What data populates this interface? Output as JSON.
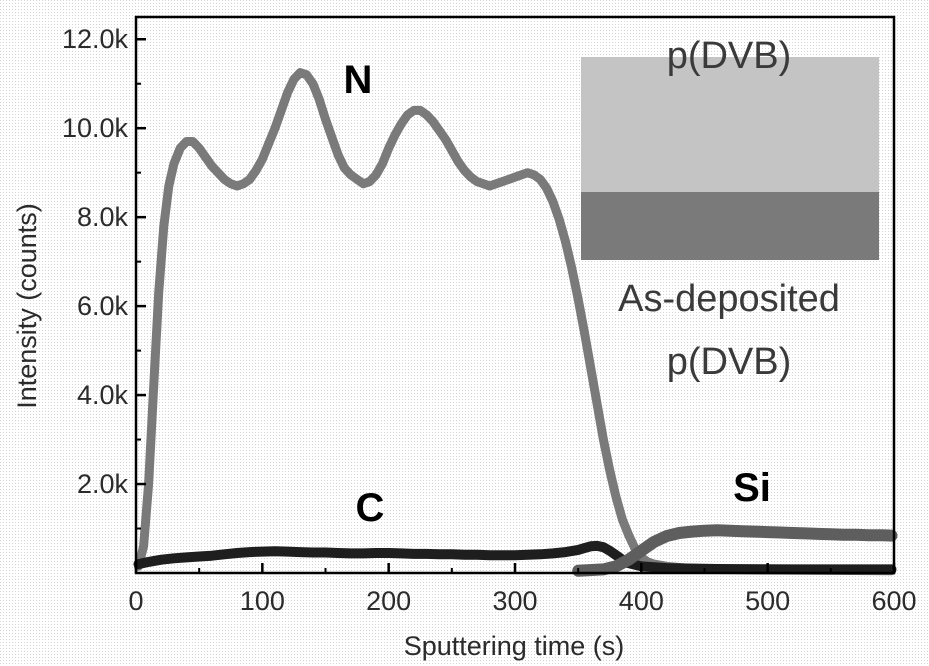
{
  "chart_data": {
    "type": "line",
    "xlabel": "Sputtering time (s)",
    "ylabel": "Intensity (counts)",
    "xlim": [
      0,
      600
    ],
    "ylim": [
      0,
      12500
    ],
    "x_ticks": [
      "0",
      "100",
      "200",
      "300",
      "400",
      "500",
      "600"
    ],
    "y_ticks": [
      "2.0k",
      "4.0k",
      "6.0k",
      "8.0k",
      "10.0k",
      "12.0k"
    ],
    "y_tick_values": [
      2000,
      4000,
      6000,
      8000,
      10000,
      12000
    ],
    "grid": false,
    "legend": "none",
    "annotations": {
      "n_label": "N",
      "c_label": "C",
      "si_label": "Si"
    },
    "inset": {
      "top_layer_label": "p(DVB)",
      "bottom_layer_label_1": "As-deposited",
      "bottom_layer_label_2": "p(DVB)",
      "top_layer_color": "#c4c4c4",
      "bottom_layer_color": "#7a7a7a"
    },
    "series": [
      {
        "name": "N",
        "color": "#7a7a7a",
        "points": [
          [
            2,
            150
          ],
          [
            6,
            600
          ],
          [
            10,
            2000
          ],
          [
            14,
            4200
          ],
          [
            18,
            6300
          ],
          [
            22,
            7800
          ],
          [
            26,
            8700
          ],
          [
            30,
            9200
          ],
          [
            35,
            9550
          ],
          [
            40,
            9700
          ],
          [
            45,
            9700
          ],
          [
            50,
            9550
          ],
          [
            55,
            9350
          ],
          [
            60,
            9150
          ],
          [
            65,
            9000
          ],
          [
            70,
            8850
          ],
          [
            75,
            8750
          ],
          [
            80,
            8700
          ],
          [
            85,
            8750
          ],
          [
            90,
            8850
          ],
          [
            95,
            9050
          ],
          [
            100,
            9300
          ],
          [
            105,
            9650
          ],
          [
            110,
            10000
          ],
          [
            115,
            10400
          ],
          [
            120,
            10800
          ],
          [
            125,
            11100
          ],
          [
            130,
            11250
          ],
          [
            135,
            11200
          ],
          [
            140,
            11000
          ],
          [
            145,
            10650
          ],
          [
            150,
            10200
          ],
          [
            155,
            9800
          ],
          [
            160,
            9400
          ],
          [
            165,
            9100
          ],
          [
            170,
            8950
          ],
          [
            175,
            8850
          ],
          [
            180,
            8750
          ],
          [
            185,
            8800
          ],
          [
            190,
            8950
          ],
          [
            195,
            9200
          ],
          [
            200,
            9550
          ],
          [
            205,
            9850
          ],
          [
            210,
            10100
          ],
          [
            215,
            10300
          ],
          [
            220,
            10400
          ],
          [
            225,
            10400
          ],
          [
            230,
            10300
          ],
          [
            235,
            10150
          ],
          [
            240,
            9950
          ],
          [
            245,
            9750
          ],
          [
            250,
            9500
          ],
          [
            255,
            9250
          ],
          [
            260,
            9050
          ],
          [
            265,
            8900
          ],
          [
            270,
            8800
          ],
          [
            275,
            8750
          ],
          [
            280,
            8700
          ],
          [
            285,
            8750
          ],
          [
            290,
            8800
          ],
          [
            295,
            8850
          ],
          [
            300,
            8900
          ],
          [
            305,
            8950
          ],
          [
            310,
            9000
          ],
          [
            315,
            8950
          ],
          [
            320,
            8850
          ],
          [
            325,
            8650
          ],
          [
            330,
            8350
          ],
          [
            335,
            7950
          ],
          [
            340,
            7450
          ],
          [
            345,
            6850
          ],
          [
            350,
            6150
          ],
          [
            355,
            5400
          ],
          [
            360,
            4600
          ],
          [
            365,
            3800
          ],
          [
            370,
            3000
          ],
          [
            375,
            2300
          ],
          [
            380,
            1700
          ],
          [
            385,
            1200
          ],
          [
            390,
            850
          ],
          [
            395,
            550
          ],
          [
            400,
            350
          ],
          [
            405,
            250
          ],
          [
            410,
            200
          ],
          [
            420,
            150
          ],
          [
            440,
            100
          ],
          [
            470,
            80
          ],
          [
            500,
            70
          ],
          [
            540,
            60
          ],
          [
            598,
            50
          ]
        ]
      },
      {
        "name": "C",
        "color": "#1e1e1e",
        "points": [
          [
            2,
            200
          ],
          [
            10,
            250
          ],
          [
            20,
            300
          ],
          [
            30,
            330
          ],
          [
            40,
            350
          ],
          [
            50,
            370
          ],
          [
            60,
            390
          ],
          [
            70,
            420
          ],
          [
            80,
            450
          ],
          [
            90,
            470
          ],
          [
            100,
            480
          ],
          [
            110,
            490
          ],
          [
            120,
            480
          ],
          [
            130,
            470
          ],
          [
            140,
            460
          ],
          [
            150,
            460
          ],
          [
            160,
            450
          ],
          [
            170,
            440
          ],
          [
            180,
            440
          ],
          [
            190,
            450
          ],
          [
            200,
            450
          ],
          [
            210,
            440
          ],
          [
            220,
            430
          ],
          [
            230,
            430
          ],
          [
            240,
            420
          ],
          [
            250,
            420
          ],
          [
            260,
            410
          ],
          [
            270,
            410
          ],
          [
            280,
            400
          ],
          [
            290,
            400
          ],
          [
            300,
            400
          ],
          [
            310,
            410
          ],
          [
            320,
            420
          ],
          [
            330,
            440
          ],
          [
            340,
            470
          ],
          [
            350,
            520
          ],
          [
            355,
            560
          ],
          [
            360,
            600
          ],
          [
            365,
            610
          ],
          [
            370,
            580
          ],
          [
            375,
            500
          ],
          [
            380,
            400
          ],
          [
            385,
            300
          ],
          [
            390,
            220
          ],
          [
            400,
            150
          ],
          [
            420,
            110
          ],
          [
            460,
            90
          ],
          [
            520,
            80
          ],
          [
            598,
            80
          ]
        ]
      },
      {
        "name": "Si",
        "color": "#5e5e5e",
        "points": [
          [
            350,
            50
          ],
          [
            370,
            80
          ],
          [
            380,
            150
          ],
          [
            390,
            300
          ],
          [
            400,
            500
          ],
          [
            410,
            700
          ],
          [
            420,
            830
          ],
          [
            430,
            900
          ],
          [
            440,
            930
          ],
          [
            450,
            950
          ],
          [
            460,
            960
          ],
          [
            470,
            950
          ],
          [
            480,
            940
          ],
          [
            490,
            930
          ],
          [
            500,
            920
          ],
          [
            510,
            910
          ],
          [
            520,
            900
          ],
          [
            530,
            890
          ],
          [
            540,
            880
          ],
          [
            550,
            870
          ],
          [
            560,
            860
          ],
          [
            570,
            860
          ],
          [
            580,
            850
          ],
          [
            590,
            850
          ],
          [
            598,
            840
          ]
        ]
      }
    ]
  }
}
